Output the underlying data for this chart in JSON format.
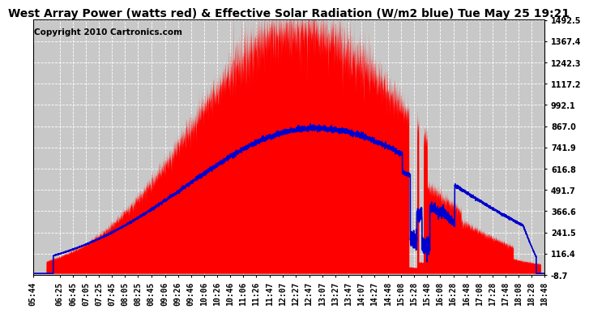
{
  "title": "West Array Power (watts red) & Effective Solar Radiation (W/m2 blue) Tue May 25 19:21",
  "copyright": "Copyright 2010 Cartronics.com",
  "bg_color": "#ffffff",
  "plot_bg_color": "#c8c8c8",
  "grid_color": "#ffffff",
  "red_color": "#ff0000",
  "blue_color": "#0000cd",
  "ylim": [
    -8.7,
    1492.5
  ],
  "yticks": [
    -8.7,
    116.4,
    241.5,
    366.6,
    491.7,
    616.8,
    741.9,
    867.0,
    992.1,
    1117.2,
    1242.3,
    1367.4,
    1492.5
  ],
  "xtick_labels": [
    "05:44",
    "06:25",
    "06:45",
    "07:05",
    "07:25",
    "07:45",
    "08:05",
    "08:25",
    "08:45",
    "09:06",
    "09:26",
    "09:46",
    "10:06",
    "10:26",
    "10:46",
    "11:06",
    "11:26",
    "11:47",
    "12:07",
    "12:27",
    "12:47",
    "13:07",
    "13:27",
    "13:47",
    "14:07",
    "14:27",
    "14:48",
    "15:08",
    "15:28",
    "15:48",
    "16:08",
    "16:28",
    "16:48",
    "17:08",
    "17:28",
    "17:48",
    "18:08",
    "18:28",
    "18:48"
  ],
  "time_minutes": [
    344,
    385,
    405,
    425,
    445,
    465,
    485,
    505,
    525,
    546,
    566,
    586,
    606,
    626,
    646,
    666,
    686,
    707,
    727,
    747,
    767,
    787,
    807,
    827,
    847,
    867,
    888,
    908,
    928,
    948,
    968,
    988,
    1008,
    1028,
    1048,
    1068,
    1088,
    1108,
    1128
  ],
  "title_fontsize": 10,
  "copyright_fontsize": 7.5,
  "tick_fontsize": 7
}
